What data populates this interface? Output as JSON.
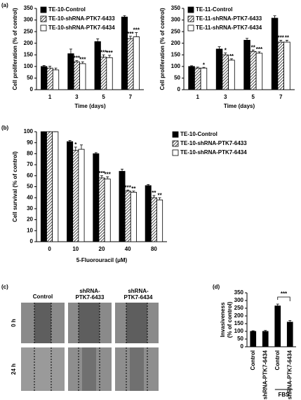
{
  "panels": [
    "(a)",
    "(b)",
    "(c)",
    "(d)"
  ],
  "micrographs": {
    "columns": [
      [
        "Control"
      ],
      [
        "shRNA-",
        "PTK7-6433"
      ],
      [
        "shRNA-",
        "PTK7-6434"
      ]
    ],
    "rows": [
      "0 h",
      "24 h"
    ]
  },
  "chart_data": [
    {
      "type": "bar",
      "x_label": "Time (days)",
      "y_label": "Cell proliferation (% of control)",
      "categories": [
        "1",
        "3",
        "5",
        "7"
      ],
      "ylim": [
        0,
        350
      ],
      "yticks": [
        0,
        50,
        100,
        150,
        200,
        250,
        300,
        350
      ],
      "grid": false,
      "legend": "upper left",
      "series": [
        {
          "name": "TE-10-Control",
          "color": "#000000",
          "values": [
            100,
            155,
            207,
            313
          ],
          "errors": [
            4,
            20,
            12,
            6
          ],
          "annotations": [
            null,
            null,
            null,
            null
          ]
        },
        {
          "name": "TE-10-shRNA-PTK7-6433",
          "color": "#000000",
          "pattern": "hatch",
          "values": [
            93,
            120,
            140,
            220
          ],
          "errors": [
            8,
            5,
            10,
            10
          ],
          "annotations": [
            null,
            "***",
            "***",
            "***"
          ]
        },
        {
          "name": "TE-10-shRNA-PTK7-6434",
          "color": "#ffffff",
          "values": [
            85,
            112,
            138,
            228
          ],
          "errors": [
            8,
            8,
            10,
            18
          ],
          "annotations": [
            null,
            "***",
            "***",
            "***"
          ]
        }
      ]
    },
    {
      "type": "bar",
      "x_label": "Time (days)",
      "y_label": "Cell proliferation (% of control)",
      "categories": [
        "1",
        "3",
        "5",
        "7"
      ],
      "ylim": [
        0,
        350
      ],
      "yticks": [
        0,
        50,
        100,
        150,
        200,
        250,
        300,
        350
      ],
      "grid": false,
      "legend": "upper left",
      "series": [
        {
          "name": "TE-11-Control",
          "color": "#000000",
          "values": [
            100,
            175,
            213,
            308
          ],
          "errors": [
            3,
            10,
            8,
            10
          ],
          "annotations": [
            null,
            null,
            null,
            null
          ]
        },
        {
          "name": "TE-11-shRNA-PTK7-6433",
          "color": "#000000",
          "pattern": "hatch",
          "values": [
            93,
            150,
            165,
            205
          ],
          "errors": [
            4,
            8,
            6,
            8
          ],
          "annotations": [
            null,
            "*",
            "**",
            "***"
          ]
        },
        {
          "name": "TE-11-shRNA-PTK7-6434",
          "color": "#ffffff",
          "values": [
            93,
            127,
            157,
            205
          ],
          "errors": [
            3,
            6,
            6,
            8
          ],
          "annotations": [
            "*",
            "**",
            "***",
            "**"
          ]
        }
      ]
    },
    {
      "type": "bar",
      "x_label": "5-Fluorouracil (μM)",
      "y_label": "Cell survival (% of control)",
      "categories": [
        "0",
        "10",
        "20",
        "40",
        "80"
      ],
      "ylim": [
        0,
        100
      ],
      "yticks": [
        0,
        10,
        20,
        30,
        40,
        50,
        60,
        70,
        80,
        90,
        100
      ],
      "grid": false,
      "legend": "right",
      "series": [
        {
          "name": "TE-10-Control",
          "color": "#000000",
          "values": [
            100,
            91,
            80,
            64,
            51
          ],
          "errors": [
            0,
            1,
            1,
            2,
            1
          ],
          "annotations": [
            null,
            null,
            null,
            null,
            null
          ]
        },
        {
          "name": "TE-10-shRNA-PTK7-6433",
          "color": "#000000",
          "pattern": "hatch",
          "values": [
            100,
            83,
            58,
            46,
            40
          ],
          "errors": [
            0,
            3,
            2,
            1,
            2
          ],
          "annotations": [
            null,
            "*",
            "***",
            "***",
            "**"
          ]
        },
        {
          "name": "TE-10-shRNA-PTK7-6434",
          "color": "#ffffff",
          "values": [
            100,
            84,
            57,
            45,
            38
          ],
          "errors": [
            0,
            4,
            2,
            1,
            2
          ],
          "annotations": [
            null,
            null,
            "***",
            "**",
            "**"
          ]
        }
      ]
    },
    {
      "type": "bar",
      "y_label": [
        "Invasiveness",
        "(% of control)"
      ],
      "categories": [
        "Control",
        "shRNA-PTK7-6434",
        "Control",
        "shRNA-PTK7-6434"
      ],
      "values": [
        100,
        100,
        265,
        160
      ],
      "errors": [
        4,
        6,
        12,
        10
      ],
      "color": "#000000",
      "ylim": [
        0,
        350
      ],
      "yticks": [
        0,
        50,
        100,
        150,
        200,
        250,
        300,
        350
      ],
      "grid": false,
      "annotation": "***",
      "group_label": "FBS"
    }
  ]
}
